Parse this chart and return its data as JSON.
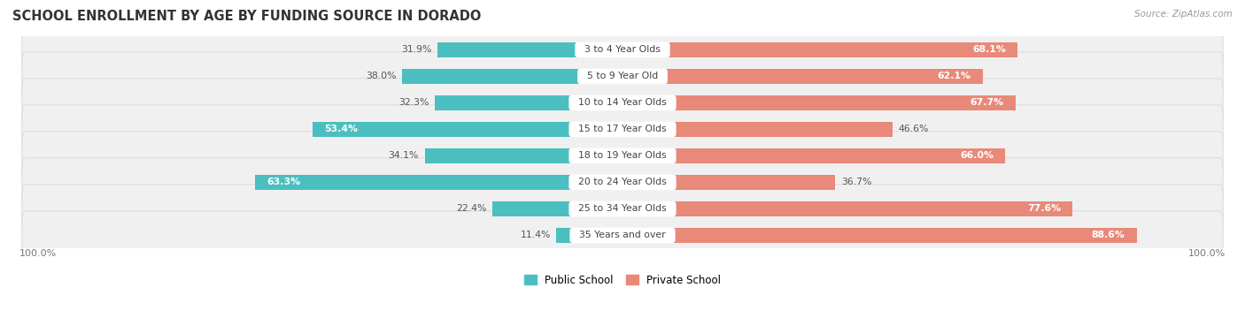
{
  "title": "SCHOOL ENROLLMENT BY AGE BY FUNDING SOURCE IN DORADO",
  "source": "Source: ZipAtlas.com",
  "categories": [
    "3 to 4 Year Olds",
    "5 to 9 Year Old",
    "10 to 14 Year Olds",
    "15 to 17 Year Olds",
    "18 to 19 Year Olds",
    "20 to 24 Year Olds",
    "25 to 34 Year Olds",
    "35 Years and over"
  ],
  "public_values": [
    31.9,
    38.0,
    32.3,
    53.4,
    34.1,
    63.3,
    22.4,
    11.4
  ],
  "private_values": [
    68.1,
    62.1,
    67.7,
    46.6,
    66.0,
    36.7,
    77.6,
    88.6
  ],
  "public_color": "#4BBFBF",
  "private_color": "#E8897A",
  "background_color": "#FFFFFF",
  "card_color": "#F0F0F0",
  "card_border_color": "#DDDDDD",
  "axis_label_left": "100.0%",
  "axis_label_right": "100.0%",
  "legend_public": "Public School",
  "legend_private": "Private School",
  "title_fontsize": 10.5,
  "bar_height": 0.58,
  "xlim": 105
}
